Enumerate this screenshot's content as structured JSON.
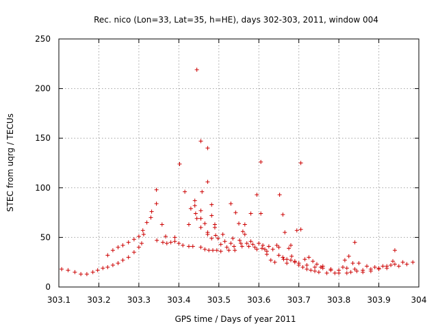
{
  "chart_data": {
    "type": "scatter",
    "title": "Rec. nico (Lon=33, Lat=35, h=HE), days 302-303, 2011, window 004",
    "xlabel": "GPS time / Days of year 2011",
    "ylabel": "STEC from uqrg / TECUs",
    "xlim": [
      303.1,
      304.0
    ],
    "ylim": [
      0,
      250
    ],
    "grid": true,
    "marker": "+",
    "color": "#cc0000",
    "xticks": [
      303.1,
      303.2,
      303.3,
      303.4,
      303.5,
      303.6,
      303.7,
      303.8,
      303.9,
      304.0
    ],
    "xtick_labels": [
      "303.1",
      "303.2",
      "303.3",
      "303.4",
      "303.5",
      "303.6",
      "303.7",
      "303.8",
      "303.9",
      "304"
    ],
    "yticks": [
      0,
      50,
      100,
      150,
      200,
      250
    ],
    "ytick_labels": [
      "0",
      "50",
      "100",
      "150",
      "200",
      "250"
    ],
    "points": [
      [
        303.107,
        18
      ],
      [
        303.123,
        17
      ],
      [
        303.14,
        15
      ],
      [
        303.155,
        13
      ],
      [
        303.17,
        13
      ],
      [
        303.185,
        15
      ],
      [
        303.197,
        17
      ],
      [
        303.21,
        19
      ],
      [
        303.222,
        20
      ],
      [
        303.235,
        22
      ],
      [
        303.248,
        24
      ],
      [
        303.26,
        27
      ],
      [
        303.274,
        30
      ],
      [
        303.288,
        35
      ],
      [
        303.3,
        40
      ],
      [
        303.222,
        32
      ],
      [
        303.235,
        37
      ],
      [
        303.248,
        40
      ],
      [
        303.26,
        42
      ],
      [
        303.274,
        45
      ],
      [
        303.288,
        48
      ],
      [
        303.3,
        51
      ],
      [
        303.312,
        53
      ],
      [
        303.307,
        44
      ],
      [
        303.31,
        57
      ],
      [
        303.32,
        65
      ],
      [
        303.33,
        70
      ],
      [
        303.332,
        76
      ],
      [
        303.344,
        84
      ],
      [
        303.344,
        98
      ],
      [
        303.358,
        63
      ],
      [
        303.345,
        47
      ],
      [
        303.36,
        45
      ],
      [
        303.37,
        44
      ],
      [
        303.38,
        45
      ],
      [
        303.39,
        46
      ],
      [
        303.4,
        44
      ],
      [
        303.41,
        42
      ],
      [
        303.425,
        41
      ],
      [
        303.435,
        41
      ],
      [
        303.367,
        51
      ],
      [
        303.39,
        50
      ],
      [
        303.402,
        124
      ],
      [
        303.415,
        96
      ],
      [
        303.425,
        63
      ],
      [
        303.43,
        79
      ],
      [
        303.44,
        87
      ],
      [
        303.44,
        82
      ],
      [
        303.442,
        74
      ],
      [
        303.445,
        219
      ],
      [
        303.445,
        69
      ],
      [
        303.455,
        147
      ],
      [
        303.455,
        77
      ],
      [
        303.455,
        69
      ],
      [
        303.458,
        96
      ],
      [
        303.455,
        60
      ],
      [
        303.465,
        64
      ],
      [
        303.472,
        140
      ],
      [
        303.472,
        106
      ],
      [
        303.472,
        55
      ],
      [
        303.472,
        53
      ],
      [
        303.455,
        40
      ],
      [
        303.465,
        38
      ],
      [
        303.475,
        37
      ],
      [
        303.485,
        37
      ],
      [
        303.495,
        37
      ],
      [
        303.505,
        36
      ],
      [
        303.482,
        83
      ],
      [
        303.482,
        72
      ],
      [
        303.482,
        49
      ],
      [
        303.49,
        63
      ],
      [
        303.49,
        60
      ],
      [
        303.492,
        52
      ],
      [
        303.498,
        49
      ],
      [
        303.505,
        43
      ],
      [
        303.51,
        53
      ],
      [
        303.515,
        46
      ],
      [
        303.52,
        40
      ],
      [
        303.525,
        37
      ],
      [
        303.53,
        84
      ],
      [
        303.53,
        44
      ],
      [
        303.535,
        49
      ],
      [
        303.538,
        41
      ],
      [
        303.54,
        37
      ],
      [
        303.542,
        75
      ],
      [
        303.55,
        64
      ],
      [
        303.552,
        47
      ],
      [
        303.555,
        44
      ],
      [
        303.558,
        41
      ],
      [
        303.56,
        56
      ],
      [
        303.565,
        63
      ],
      [
        303.565,
        53
      ],
      [
        303.57,
        44
      ],
      [
        303.575,
        41
      ],
      [
        303.58,
        74
      ],
      [
        303.58,
        46
      ],
      [
        303.585,
        43
      ],
      [
        303.59,
        40
      ],
      [
        303.595,
        93
      ],
      [
        303.595,
        38
      ],
      [
        303.6,
        44
      ],
      [
        303.605,
        126
      ],
      [
        303.605,
        74
      ],
      [
        303.608,
        39
      ],
      [
        303.61,
        42
      ],
      [
        303.615,
        38
      ],
      [
        303.62,
        36
      ],
      [
        303.62,
        33
      ],
      [
        303.625,
        41
      ],
      [
        303.63,
        27
      ],
      [
        303.635,
        38
      ],
      [
        303.64,
        25
      ],
      [
        303.645,
        42
      ],
      [
        303.65,
        40
      ],
      [
        303.652,
        93
      ],
      [
        303.66,
        73
      ],
      [
        303.662,
        28
      ],
      [
        303.665,
        55
      ],
      [
        303.67,
        24
      ],
      [
        303.675,
        39
      ],
      [
        303.68,
        42
      ],
      [
        303.682,
        31
      ],
      [
        303.69,
        25
      ],
      [
        303.695,
        57
      ],
      [
        303.7,
        22
      ],
      [
        303.705,
        125
      ],
      [
        303.705,
        58
      ],
      [
        303.71,
        20
      ],
      [
        303.715,
        28
      ],
      [
        303.72,
        18
      ],
      [
        303.725,
        30
      ],
      [
        303.73,
        17
      ],
      [
        303.735,
        26
      ],
      [
        303.74,
        16
      ],
      [
        303.745,
        23
      ],
      [
        303.75,
        15
      ],
      [
        303.755,
        20
      ],
      [
        303.76,
        21
      ],
      [
        303.77,
        14
      ],
      [
        303.78,
        17
      ],
      [
        303.79,
        14
      ],
      [
        303.8,
        14
      ],
      [
        303.81,
        20
      ],
      [
        303.815,
        27
      ],
      [
        303.82,
        14
      ],
      [
        303.825,
        31
      ],
      [
        303.83,
        15
      ],
      [
        303.835,
        24
      ],
      [
        303.84,
        45
      ],
      [
        303.845,
        16
      ],
      [
        303.85,
        24
      ],
      [
        303.86,
        15
      ],
      [
        303.87,
        21
      ],
      [
        303.88,
        16
      ],
      [
        303.89,
        20
      ],
      [
        303.9,
        18
      ],
      [
        303.91,
        21
      ],
      [
        303.92,
        19
      ],
      [
        303.93,
        22
      ],
      [
        303.935,
        26
      ],
      [
        303.94,
        37
      ],
      [
        303.95,
        21
      ],
      [
        303.96,
        25
      ],
      [
        303.97,
        23
      ],
      [
        303.985,
        25
      ],
      [
        303.65,
        32
      ],
      [
        303.66,
        30
      ],
      [
        303.67,
        28
      ],
      [
        303.68,
        27
      ],
      [
        303.69,
        26
      ],
      [
        303.7,
        24
      ],
      [
        303.72,
        22
      ],
      [
        303.74,
        20
      ],
      [
        303.76,
        19
      ],
      [
        303.78,
        18
      ],
      [
        303.8,
        17
      ],
      [
        303.82,
        19
      ],
      [
        303.84,
        18
      ],
      [
        303.86,
        17
      ],
      [
        303.88,
        18
      ],
      [
        303.9,
        19
      ],
      [
        303.92,
        21
      ],
      [
        303.94,
        23
      ]
    ]
  }
}
